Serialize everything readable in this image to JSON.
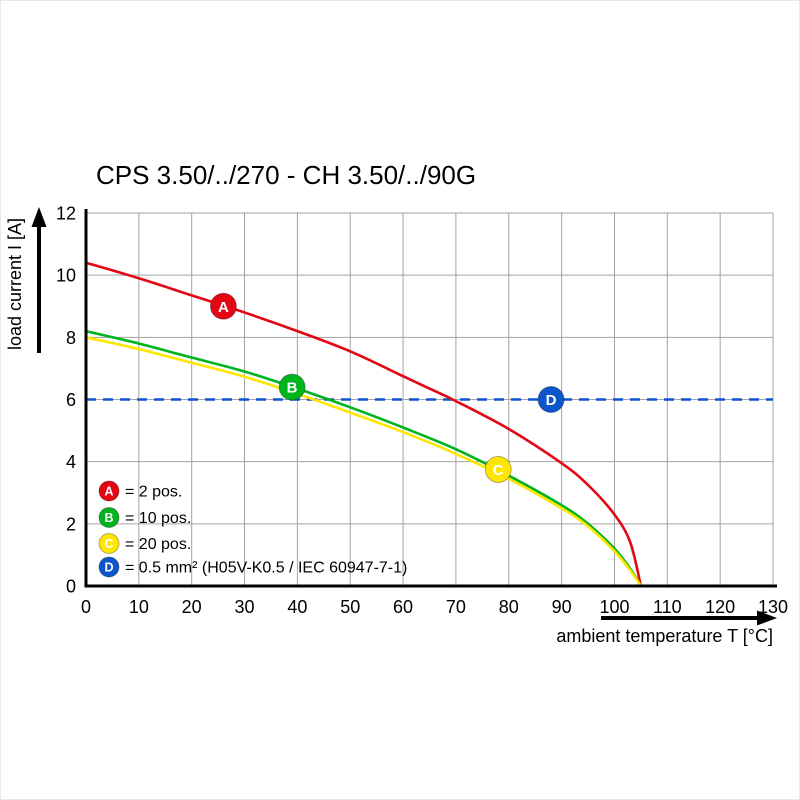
{
  "chart_data": {
    "type": "line",
    "title": "CPS 3.50/../270 - CH 3.50/../90G",
    "xlabel": "ambient temperature T [°C]",
    "ylabel": "load current I [A]",
    "xlim": [
      0,
      130
    ],
    "ylim": [
      0,
      12
    ],
    "xticks": [
      0,
      10,
      20,
      30,
      40,
      50,
      60,
      70,
      80,
      90,
      100,
      110,
      120,
      130
    ],
    "yticks": [
      0,
      2,
      4,
      6,
      8,
      10,
      12
    ],
    "grid": true,
    "grid_color": "#a3a3a3",
    "axis_color": "#000000",
    "series": [
      {
        "name": "A",
        "legend": "= 2 pos.",
        "color": "#e30613",
        "points": [
          [
            0,
            10.4
          ],
          [
            10,
            9.9
          ],
          [
            20,
            9.35
          ],
          [
            30,
            8.8
          ],
          [
            40,
            8.2
          ],
          [
            50,
            7.55
          ],
          [
            60,
            6.75
          ],
          [
            65,
            6.35
          ],
          [
            70,
            5.95
          ],
          [
            80,
            5.05
          ],
          [
            90,
            3.95
          ],
          [
            95,
            3.25
          ],
          [
            100,
            2.3
          ],
          [
            103,
            1.4
          ],
          [
            105,
            0
          ]
        ]
      },
      {
        "name": "B",
        "legend": "= 10 pos.",
        "color": "#00b41e",
        "points": [
          [
            0,
            8.2
          ],
          [
            10,
            7.8
          ],
          [
            20,
            7.35
          ],
          [
            30,
            6.9
          ],
          [
            40,
            6.35
          ],
          [
            50,
            5.75
          ],
          [
            60,
            5.1
          ],
          [
            70,
            4.4
          ],
          [
            80,
            3.55
          ],
          [
            90,
            2.6
          ],
          [
            95,
            2.0
          ],
          [
            100,
            1.2
          ],
          [
            103,
            0.55
          ],
          [
            105,
            0
          ]
        ]
      },
      {
        "name": "C",
        "legend": "= 20 pos.",
        "color": "#ffe600",
        "points": [
          [
            0,
            8.0
          ],
          [
            10,
            7.62
          ],
          [
            20,
            7.18
          ],
          [
            30,
            6.73
          ],
          [
            40,
            6.18
          ],
          [
            50,
            5.58
          ],
          [
            60,
            4.95
          ],
          [
            70,
            4.25
          ],
          [
            80,
            3.45
          ],
          [
            90,
            2.5
          ],
          [
            95,
            1.92
          ],
          [
            100,
            1.12
          ],
          [
            103,
            0.5
          ],
          [
            105,
            0
          ]
        ]
      },
      {
        "name": "D",
        "legend": "= 0.5 mm² (H05V-K0.5 / IEC 60947-7-1)",
        "color": "#0d55cb",
        "style": "dashed-horizontal",
        "value": 6
      }
    ],
    "markers": [
      {
        "letter": "A",
        "x": 26,
        "y": 9.0
      },
      {
        "letter": "B",
        "x": 39,
        "y": 6.4
      },
      {
        "letter": "C",
        "x": 78,
        "y": 3.75
      },
      {
        "letter": "D",
        "x": 88,
        "y": 6.0
      }
    ]
  }
}
